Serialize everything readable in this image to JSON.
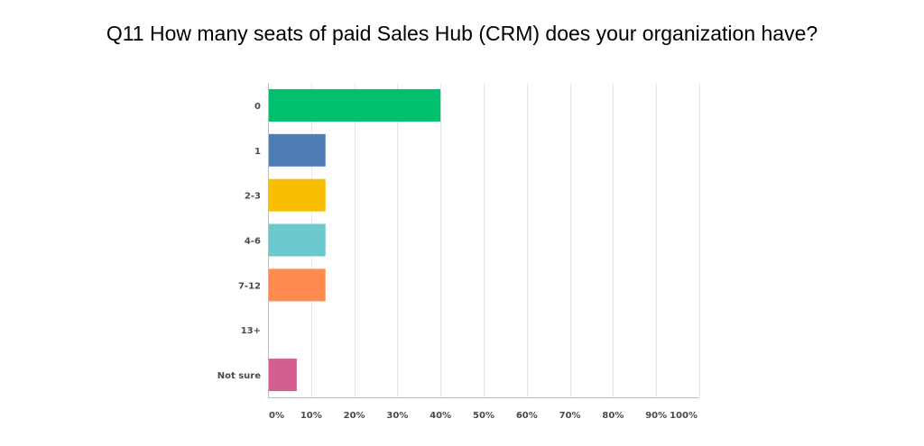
{
  "chart_data": {
    "type": "bar",
    "orientation": "horizontal",
    "title": "Q11 How many seats of paid Sales Hub (CRM) does your organization have?",
    "categories": [
      "0",
      "1",
      "2-3",
      "4-6",
      "7-12",
      "13+",
      "Not sure"
    ],
    "values": [
      40,
      13.33,
      13.33,
      13.33,
      13.33,
      0,
      6.67
    ],
    "unit": "%",
    "colors": [
      "#00bf6f",
      "#507cb6",
      "#f9be00",
      "#6bc8cd",
      "#ff8b4f",
      "#7f7fff",
      "#d25f90"
    ],
    "xlim": [
      0,
      100
    ],
    "xticks": [
      "0%",
      "10%",
      "20%",
      "30%",
      "40%",
      "50%",
      "60%",
      "70%",
      "80%",
      "90%",
      "100%"
    ],
    "grid": true,
    "legend": "none"
  }
}
